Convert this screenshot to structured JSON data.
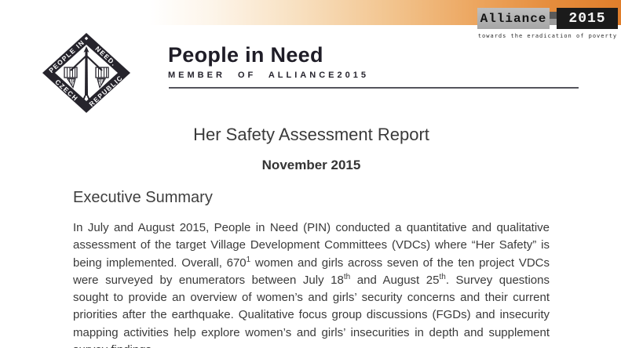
{
  "header": {
    "org_name": "People in Need",
    "org_subtitle": "MEMBER OF ALLIANCE2015",
    "logo": {
      "edge_top_left": "PEOPLE IN",
      "edge_top_right": "NEED.",
      "edge_bottom_left": "CZECH",
      "edge_bottom_right": "REPUBLIC"
    },
    "alliance_badge": {
      "name": "Alliance",
      "year": "2015",
      "tagline": "towards the eradication of poverty"
    },
    "colors": {
      "accent_orange": "#e07e2b",
      "badge_gray": "#b0b0b0",
      "badge_black": "#1b1b1b",
      "logo_black": "#26242c"
    }
  },
  "document": {
    "title": "Her Safety Assessment Report",
    "date": "November 2015",
    "section_heading": "Executive Summary",
    "paragraph_segments": [
      {
        "text": "In July and August 2015, People in Need (PIN) conducted a quantitative and qualitative assessment of the target Village Development Committees (VDCs) where “Her Safety” is being implemented. Overall, 670"
      },
      {
        "sup": "1"
      },
      {
        "text": " women and girls across seven of the ten project VDCs were surveyed by enumerators between July 18"
      },
      {
        "sup": "th"
      },
      {
        "text": " and August 25"
      },
      {
        "sup": "th"
      },
      {
        "text": ". Survey questions sought to provide an overview of women’s and girls’ security concerns and their current priorities after the earthquake. Qualitative focus group discussions (FGDs) and insecurity mapping activities help explore women’s and girls’ insecurities in depth and supplement survey findings."
      }
    ]
  }
}
